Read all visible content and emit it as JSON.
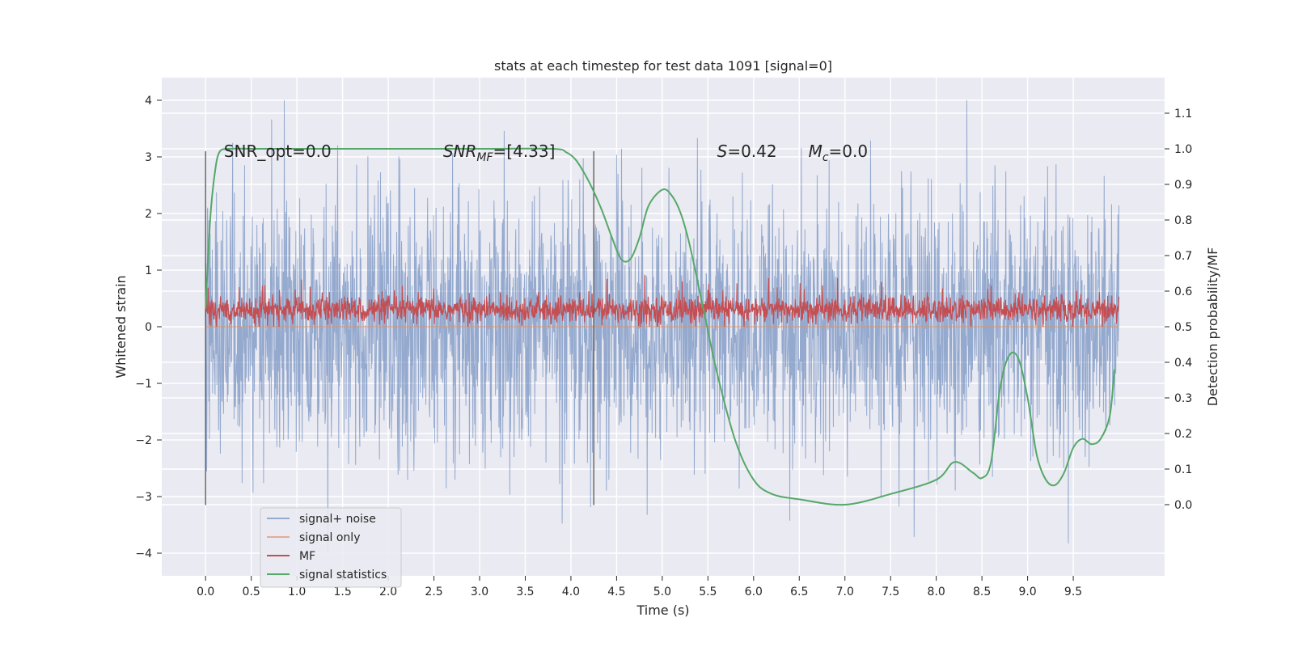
{
  "chart_data": {
    "type": "line",
    "title": "stats at each timestep for test data 1091 [signal=0]",
    "xlabel": "Time (s)",
    "ylabel": "Whitened strain",
    "ylabel_right": "Detection probability/MF",
    "xlim": [
      -0.48,
      10.5
    ],
    "ylim": [
      -4.4,
      4.4
    ],
    "ylim_right": [
      -0.2,
      1.2
    ],
    "x_ticks": [
      0.0,
      0.5,
      1.0,
      1.5,
      2.0,
      2.5,
      3.0,
      3.5,
      4.0,
      4.5,
      5.0,
      5.5,
      6.0,
      6.5,
      7.0,
      7.5,
      8.0,
      8.5,
      9.0,
      9.5
    ],
    "x_tick_labels": [
      "0.0",
      "0.5",
      "1.0",
      "1.5",
      "2.0",
      "2.5",
      "3.0",
      "3.5",
      "4.0",
      "4.5",
      "5.0",
      "5.5",
      "6.0",
      "6.5",
      "7.0",
      "7.5",
      "8.0",
      "8.5",
      "9.0",
      "9.5"
    ],
    "y_ticks": [
      -4,
      -3,
      -2,
      -1,
      0,
      1,
      2,
      3,
      4
    ],
    "y_tick_labels": [
      "−4",
      "−3",
      "−2",
      "−1",
      "0",
      "1",
      "2",
      "3",
      "4"
    ],
    "y_ticks_right": [
      0.0,
      0.1,
      0.2,
      0.3,
      0.4,
      0.5,
      0.6,
      0.7,
      0.8,
      0.9,
      1.0,
      1.1
    ],
    "y_tick_labels_right": [
      "0.0",
      "0.1",
      "0.2",
      "0.3",
      "0.4",
      "0.5",
      "0.6",
      "0.7",
      "0.8",
      "0.9",
      "1.0",
      "1.1"
    ],
    "grid": true,
    "legend": {
      "placement": "lower-left"
    },
    "annotations": [
      {
        "text": "SNR_opt=0.0",
        "x": 0.2,
        "y": 3.1
      },
      {
        "text": "SNR",
        "sub": "MF",
        "rest": "=[4.33]",
        "x": 2.6,
        "y": 3.1
      },
      {
        "text": "S",
        "rest": "=0.42",
        "x": 5.6,
        "y": 3.1
      },
      {
        "text": "M",
        "sub": "c",
        "rest": "=0.0",
        "x": 6.6,
        "y": 3.1
      }
    ],
    "vlines": [
      {
        "x": 0.0,
        "ymin": -3.15,
        "ymax": 3.1
      },
      {
        "x": 4.25,
        "ymin": -3.15,
        "ymax": 3.1
      }
    ],
    "series": [
      {
        "name": "signal+ noise",
        "color": "#4c72b0",
        "axis": "left",
        "opacity": 0.55,
        "style": "noise",
        "x_range": [
          0.0,
          10.0
        ],
        "approx_range": [
          -4.0,
          4.0
        ]
      },
      {
        "name": "signal only",
        "color": "#dd8452",
        "axis": "left",
        "opacity": 0.6,
        "x": [
          0.0,
          10.0
        ],
        "y": [
          0.0,
          0.0
        ]
      },
      {
        "name": "MF",
        "color": "#c44e52",
        "axis": "left",
        "style": "noise",
        "x_range": [
          0.0,
          10.0
        ],
        "approx_range": [
          0.0,
          1.0
        ]
      },
      {
        "name": "signal statistics",
        "color": "#55a868",
        "axis": "right",
        "x": [
          0.0,
          0.05,
          0.1,
          0.15,
          0.25,
          0.5,
          1.0,
          2.0,
          3.0,
          3.8,
          3.95,
          4.05,
          4.15,
          4.25,
          4.35,
          4.45,
          4.55,
          4.65,
          4.75,
          4.85,
          5.0,
          5.1,
          5.2,
          5.3,
          5.45,
          5.6,
          5.8,
          6.0,
          6.2,
          6.5,
          7.0,
          7.5,
          8.0,
          8.2,
          8.4,
          8.5,
          8.6,
          8.7,
          8.8,
          8.9,
          9.0,
          9.1,
          9.2,
          9.3,
          9.4,
          9.5,
          9.6,
          9.7,
          9.8,
          9.9,
          9.95
        ],
        "y": [
          0.55,
          0.8,
          0.93,
          0.99,
          1.0,
          1.0,
          1.0,
          1.0,
          1.0,
          1.0,
          0.99,
          0.97,
          0.93,
          0.88,
          0.82,
          0.75,
          0.69,
          0.69,
          0.75,
          0.84,
          0.885,
          0.87,
          0.82,
          0.73,
          0.55,
          0.37,
          0.18,
          0.07,
          0.03,
          0.015,
          0.0,
          0.03,
          0.07,
          0.12,
          0.09,
          0.075,
          0.12,
          0.33,
          0.42,
          0.41,
          0.3,
          0.14,
          0.07,
          0.055,
          0.09,
          0.16,
          0.185,
          0.17,
          0.185,
          0.25,
          0.38
        ]
      }
    ]
  }
}
